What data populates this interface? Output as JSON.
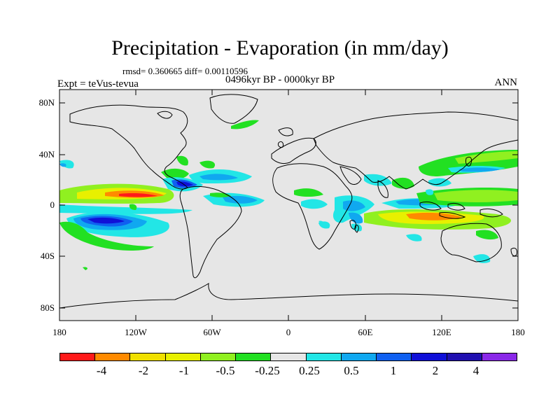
{
  "title": "Precipitation - Evaporation (in mm/day)",
  "stats": "rmsd= 0.360665  diff= 0.00110596",
  "experiment": "Expt = teVus-tevua",
  "period": "0496kyr BP - 0000kyr BP",
  "season": "ANN",
  "lat_labels": [
    "80N",
    "40N",
    "0",
    "40S",
    "80S"
  ],
  "lon_labels": [
    "180",
    "120W",
    "60W",
    "0",
    "60E",
    "120E",
    "180"
  ],
  "colorbar": {
    "colors": [
      "#ff1a1a",
      "#ff8a00",
      "#f0e000",
      "#e8f000",
      "#90f020",
      "#22e022",
      "#e6e6e6",
      "#22e6e6",
      "#10a8f0",
      "#1060f0",
      "#1010d8",
      "#2010b0",
      "#8a28e8"
    ],
    "labels": [
      "-4",
      "-2",
      "-1",
      "-0.5",
      "-0.25",
      "0.25",
      "0.5",
      "1",
      "2",
      "4"
    ]
  },
  "colors": {
    "background": "#e6e6e6",
    "coast": "#000000"
  }
}
